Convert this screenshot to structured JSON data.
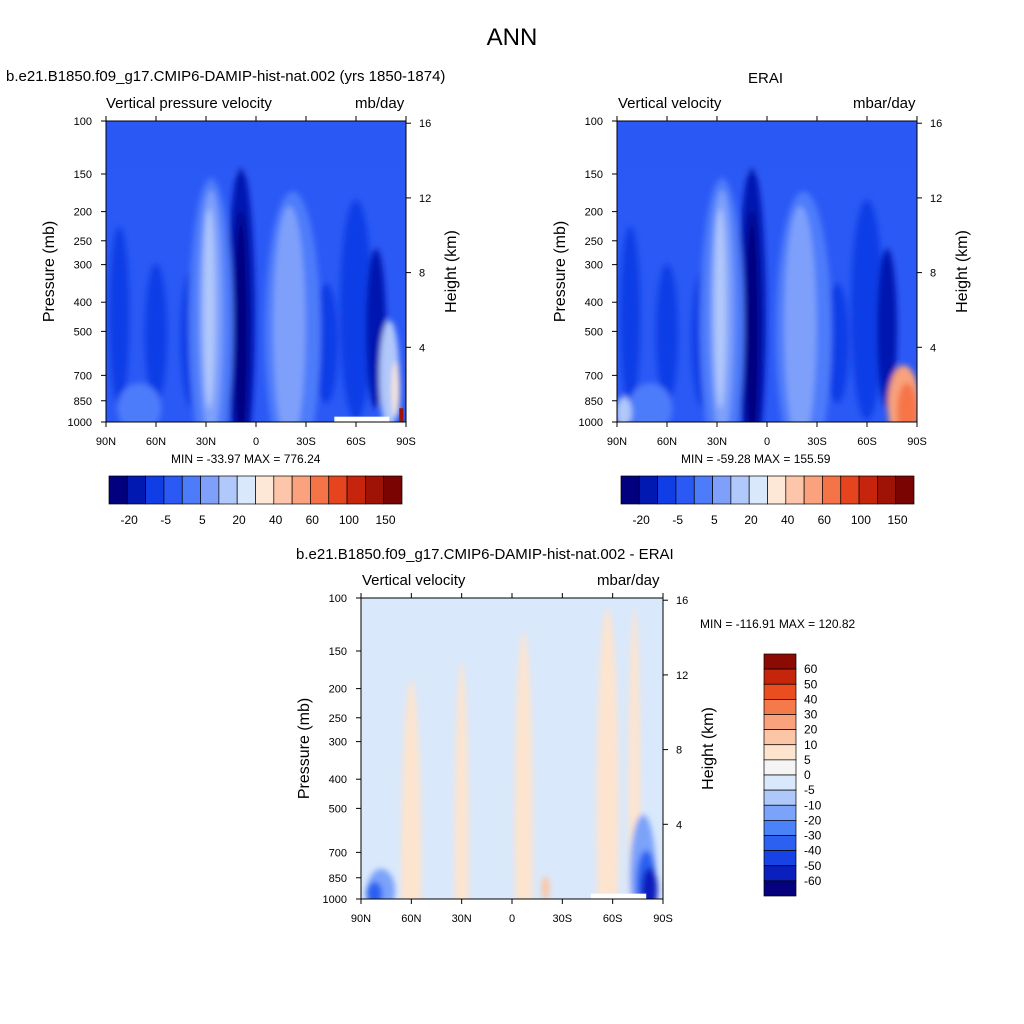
{
  "figure_title": "ANN",
  "palette": {
    "colors": [
      "#03007f",
      "#0119b0",
      "#0f3ee6",
      "#2b59f5",
      "#4d7cfa",
      "#7ea0fb",
      "#b1c8fa",
      "#d9e8fb",
      "#fde7d6",
      "#fdc6aa",
      "#f9a27d",
      "#f57447",
      "#e6431f",
      "#c7240e",
      "#9f1206",
      "#7a0402"
    ],
    "diff_colors": [
      "#06027d",
      "#0a1fbd",
      "#1642e6",
      "#2c60f1",
      "#4b82f7",
      "#7ba3fa",
      "#aec8fa",
      "#d9e8fb",
      "#f4f4f4",
      "#fde4cf",
      "#fcc5a6",
      "#faa27b",
      "#f57a4b",
      "#ea4e20",
      "#c5250b",
      "#8b0a02"
    ]
  },
  "panels": {
    "model": {
      "title": "b.e21.B1850.f09_g17.CMIP6-DAMIP-hist-nat.002 (yrs 1850-1874)",
      "left_label": "Vertical pressure velocity",
      "right_label": "mb/day",
      "stats": "MIN = -33.97  MAX = 776.24"
    },
    "obs": {
      "title": "ERAI",
      "left_label": "Vertical velocity",
      "right_label": "mbar/day",
      "stats": "MIN = -59.28  MAX = 155.59"
    },
    "diff": {
      "title": "b.e21.B1850.f09_g17.CMIP6-DAMIP-hist-nat.002 - ERAI",
      "left_label": "Vertical velocity",
      "right_label": "mbar/day",
      "stats": "MIN = -116.91  MAX = 120.82"
    }
  },
  "colorbars": {
    "top_labels": [
      "-20",
      "-5",
      "5",
      "20",
      "40",
      "60",
      "100",
      "150"
    ],
    "diff_labels": [
      "60",
      "50",
      "40",
      "30",
      "20",
      "10",
      "5",
      "0",
      "-5",
      "-10",
      "-20",
      "-30",
      "-40",
      "-50",
      "-60"
    ]
  },
  "chart_data": [
    {
      "type": "heatmap",
      "name": "model",
      "xlabel": "",
      "ylabel": "Pressure (mb)",
      "y2label": "Height (km)",
      "x_ticks": [
        "90N",
        "60N",
        "30N",
        "0",
        "30S",
        "60S",
        "90S"
      ],
      "x_range": [
        90,
        -90
      ],
      "y_scale": "log",
      "y_range": [
        1000,
        100
      ],
      "y_ticks": [
        100,
        150,
        200,
        250,
        300,
        400,
        500,
        700,
        850,
        1000
      ],
      "y2_ticks": [
        16,
        12,
        8,
        4
      ],
      "min": -33.97,
      "max": 776.24,
      "contour_levels": [
        -30,
        -25,
        -20,
        -15,
        -10,
        -5,
        0,
        5,
        10,
        20,
        30,
        40,
        50,
        60,
        100,
        150
      ],
      "features": [
        {
          "lat_range": [
            20,
            10
          ],
          "p_range": [
            1000,
            170
          ],
          "sign": "upward (negative)"
        },
        {
          "lat_range": [
            -15,
            -30
          ],
          "p_range": [
            1000,
            170
          ],
          "sign": "downward (weaker negative)"
        },
        {
          "lat_range": [
            -75,
            -90
          ],
          "p_range": [
            1000,
            600
          ],
          "sign": "mixed, strong positive near surface"
        }
      ]
    },
    {
      "type": "heatmap",
      "name": "obs",
      "xlabel": "",
      "ylabel": "Pressure (mb)",
      "y2label": "Height (km)",
      "x_ticks": [
        "90N",
        "60N",
        "30N",
        "0",
        "30S",
        "60S",
        "90S"
      ],
      "x_range": [
        90,
        -90
      ],
      "y_scale": "log",
      "y_range": [
        1000,
        100
      ],
      "y_ticks": [
        100,
        150,
        200,
        250,
        300,
        400,
        500,
        700,
        850,
        1000
      ],
      "y2_ticks": [
        16,
        12,
        8,
        4
      ],
      "min": -59.28,
      "max": 155.59,
      "contour_levels": [
        -30,
        -25,
        -20,
        -15,
        -10,
        -5,
        0,
        5,
        10,
        20,
        30,
        40,
        50,
        60,
        100,
        150
      ],
      "features": [
        {
          "lat_range": [
            15,
            5
          ],
          "p_range": [
            1000,
            200
          ],
          "sign": "upward (negative)"
        },
        {
          "lat_range": [
            -70,
            -90
          ],
          "p_range": [
            1000,
            700
          ],
          "sign": "positive (descending)"
        }
      ]
    },
    {
      "type": "heatmap",
      "name": "diff",
      "xlabel": "",
      "ylabel": "Pressure (mb)",
      "y2label": "Height (km)",
      "x_ticks": [
        "90N",
        "60N",
        "30N",
        "0",
        "30S",
        "60S",
        "90S"
      ],
      "x_range": [
        90,
        -90
      ],
      "y_scale": "log",
      "y_range": [
        1000,
        100
      ],
      "y_ticks": [
        100,
        150,
        200,
        250,
        300,
        400,
        500,
        700,
        850,
        1000
      ],
      "y2_ticks": [
        16,
        12,
        8,
        4
      ],
      "min": -116.91,
      "max": 120.82,
      "contour_levels": [
        -60,
        -50,
        -40,
        -30,
        -20,
        -10,
        -5,
        0,
        5,
        10,
        20,
        30,
        40,
        50,
        60
      ],
      "features": [
        {
          "lat_range": [
            -75,
            -90
          ],
          "p_range": [
            1000,
            700
          ],
          "sign": "strongly negative"
        },
        {
          "lat_range": [
            90,
            70
          ],
          "p_range": [
            1000,
            850
          ],
          "sign": "negative"
        }
      ]
    }
  ]
}
